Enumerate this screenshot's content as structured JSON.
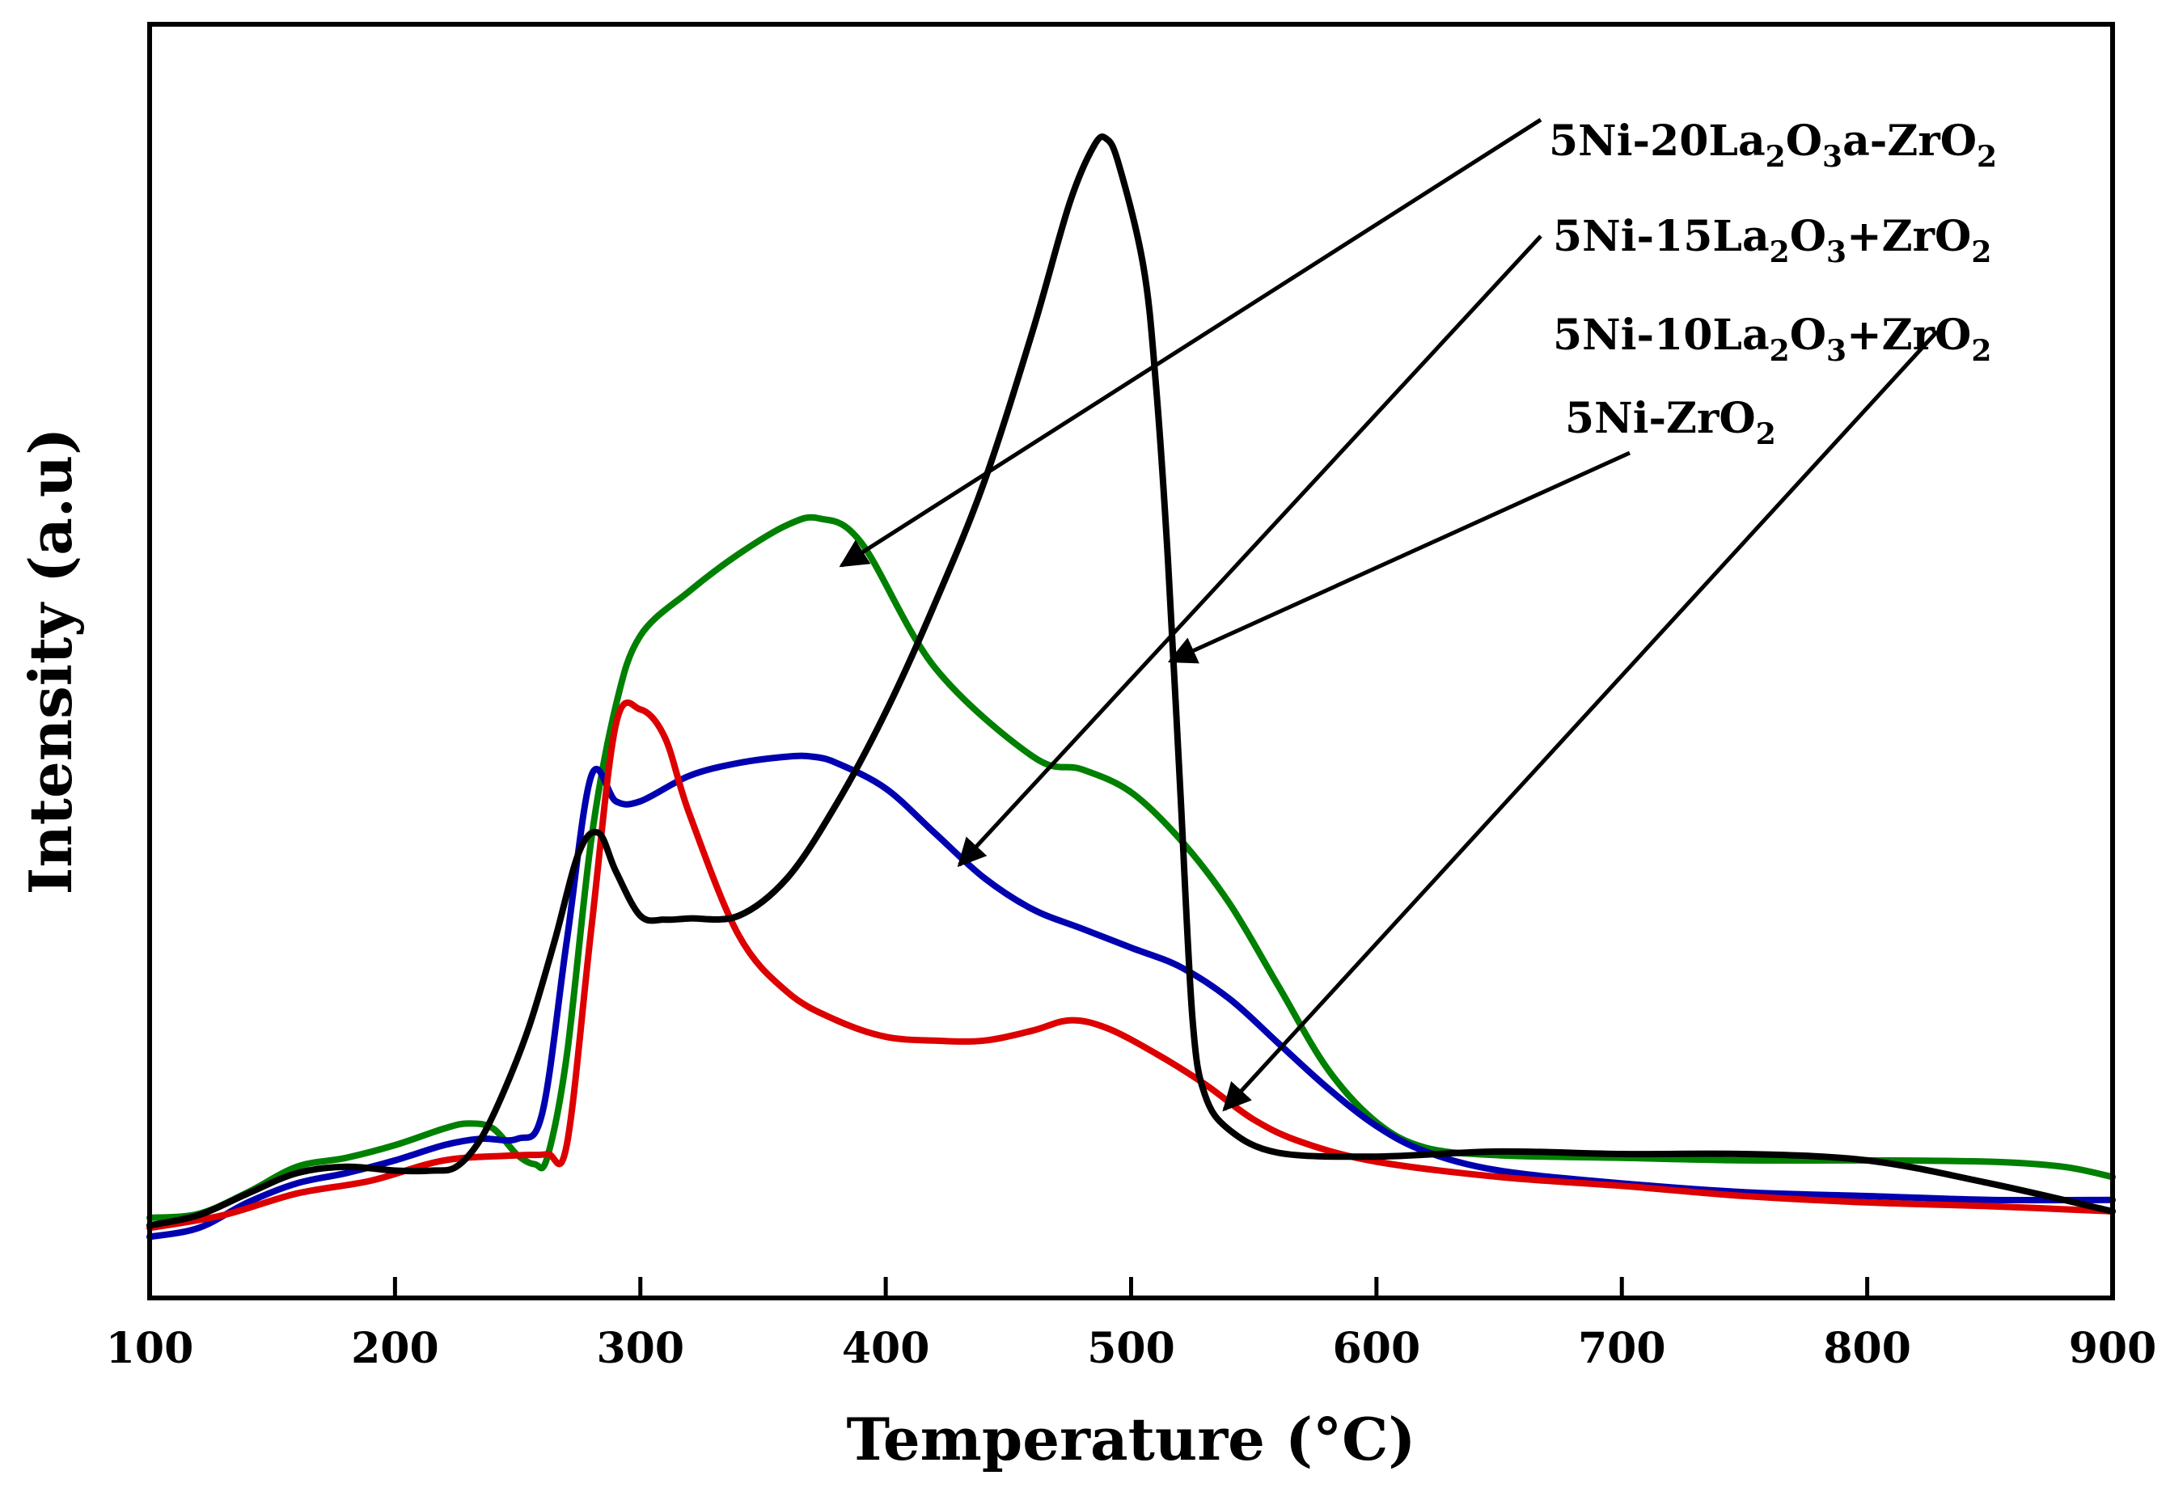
{
  "chart_data": {
    "type": "line",
    "title": "",
    "xlabel": "Temperature (°C)",
    "ylabel": "Intensity (a.u)",
    "xlim": [
      100,
      900
    ],
    "ylim": [
      0,
      1
    ],
    "xticks": [
      100,
      200,
      300,
      400,
      500,
      600,
      700,
      800,
      900
    ],
    "yticks_visible": false,
    "grid": false,
    "legend": "annotations with arrows, top-right",
    "series": [
      {
        "name": "5Ni-20La2O3a-ZrO2",
        "label_parts": [
          [
            "5Ni-20La",
            false
          ],
          [
            "2",
            true
          ],
          [
            "O",
            false
          ],
          [
            "3",
            true
          ],
          [
            "a-ZrO",
            false
          ],
          [
            "2",
            true
          ]
        ],
        "color": "#008000",
        "arrow_target": [
          382,
          0.575
        ],
        "x": [
          100,
          120,
          140,
          160,
          180,
          200,
          220,
          230,
          240,
          250,
          257,
          262,
          270,
          280,
          290,
          300,
          320,
          340,
          360,
          373,
          390,
          420,
          460,
          480,
          500,
          520,
          540,
          560,
          580,
          600,
          620,
          650,
          700,
          750,
          800,
          850,
          880,
          900
        ],
        "y": [
          0.063,
          0.066,
          0.083,
          0.103,
          0.11,
          0.12,
          0.133,
          0.137,
          0.133,
          0.112,
          0.105,
          0.11,
          0.19,
          0.36,
          0.465,
          0.52,
          0.555,
          0.584,
          0.607,
          0.612,
          0.593,
          0.495,
          0.425,
          0.415,
          0.397,
          0.36,
          0.31,
          0.245,
          0.18,
          0.138,
          0.118,
          0.112,
          0.11,
          0.108,
          0.108,
          0.107,
          0.103,
          0.095
        ]
      },
      {
        "name": "5Ni-15La2O3+ZrO2",
        "label_parts": [
          [
            "5Ni-15La",
            false
          ],
          [
            "2",
            true
          ],
          [
            "O",
            false
          ],
          [
            "3",
            true
          ],
          [
            "+ZrO",
            false
          ],
          [
            "2",
            true
          ]
        ],
        "color": "#0000b0",
        "arrow_target": [
          430,
          0.34
        ],
        "x": [
          100,
          120,
          140,
          160,
          180,
          200,
          220,
          235,
          250,
          260,
          270,
          280,
          290,
          300,
          320,
          340,
          360,
          370,
          380,
          400,
          420,
          440,
          460,
          480,
          500,
          520,
          540,
          560,
          580,
          600,
          620,
          650,
          700,
          750,
          800,
          850,
          900
        ],
        "y": [
          0.048,
          0.055,
          0.075,
          0.09,
          0.098,
          0.108,
          0.12,
          0.125,
          0.125,
          0.145,
          0.28,
          0.41,
          0.39,
          0.39,
          0.41,
          0.42,
          0.425,
          0.425,
          0.42,
          0.4,
          0.365,
          0.33,
          0.305,
          0.29,
          0.275,
          0.26,
          0.235,
          0.2,
          0.165,
          0.135,
          0.115,
          0.1,
          0.09,
          0.083,
          0.08,
          0.077,
          0.077
        ]
      },
      {
        "name": "5Ni-10La2O3+ZrO2",
        "label_parts": [
          [
            "5Ni-10La",
            false
          ],
          [
            "2",
            true
          ],
          [
            "O",
            false
          ],
          [
            "3",
            true
          ],
          [
            "+ZrO",
            false
          ],
          [
            "2",
            true
          ]
        ],
        "color": "#dd0000",
        "arrow_target": [
          538,
          0.148
        ],
        "x": [
          100,
          130,
          160,
          190,
          220,
          250,
          262,
          270,
          280,
          290,
          300,
          310,
          320,
          340,
          360,
          380,
          400,
          420,
          440,
          460,
          475,
          490,
          510,
          530,
          550,
          570,
          600,
          650,
          700,
          750,
          800,
          850,
          900
        ],
        "y": [
          0.055,
          0.065,
          0.082,
          0.092,
          0.108,
          0.112,
          0.113,
          0.12,
          0.29,
          0.45,
          0.462,
          0.44,
          0.38,
          0.285,
          0.24,
          0.218,
          0.205,
          0.202,
          0.202,
          0.21,
          0.218,
          0.212,
          0.192,
          0.168,
          0.14,
          0.122,
          0.107,
          0.095,
          0.088,
          0.08,
          0.075,
          0.072,
          0.068
        ]
      },
      {
        "name": "5Ni-ZrO2",
        "label_parts": [
          [
            "5Ni-ZrO",
            false
          ],
          [
            "2",
            true
          ]
        ],
        "color": "#000000",
        "arrow_target": [
          516,
          0.5
        ],
        "x": [
          100,
          120,
          140,
          160,
          180,
          200,
          215,
          225,
          235,
          245,
          255,
          265,
          275,
          283,
          290,
          300,
          310,
          320,
          340,
          360,
          380,
          400,
          420,
          440,
          460,
          475,
          485,
          490,
          495,
          505,
          510,
          515,
          520,
          525,
          530,
          540,
          560,
          600,
          650,
          700,
          750,
          800,
          850,
          900
        ],
        "y": [
          0.057,
          0.065,
          0.082,
          0.098,
          0.103,
          0.1,
          0.1,
          0.103,
          0.125,
          0.165,
          0.215,
          0.28,
          0.35,
          0.365,
          0.335,
          0.3,
          0.297,
          0.298,
          0.3,
          0.33,
          0.388,
          0.46,
          0.545,
          0.64,
          0.76,
          0.86,
          0.905,
          0.91,
          0.89,
          0.81,
          0.72,
          0.58,
          0.4,
          0.22,
          0.16,
          0.132,
          0.114,
          0.111,
          0.115,
          0.113,
          0.113,
          0.108,
          0.09,
          0.068
        ]
      }
    ]
  }
}
